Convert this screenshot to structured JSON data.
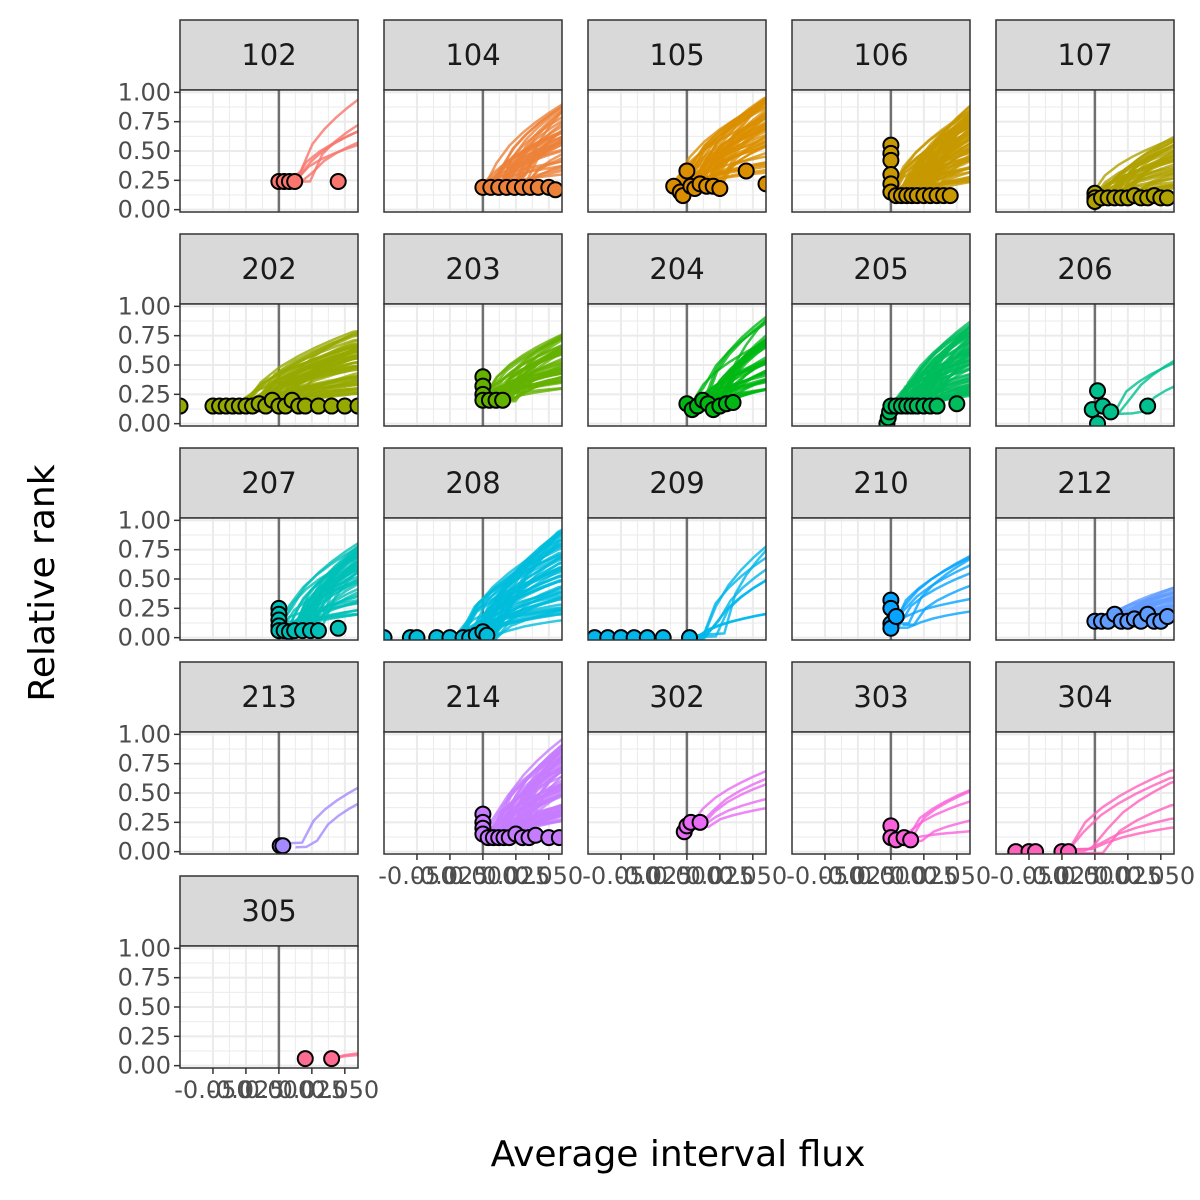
{
  "chart_data": {
    "type": "line",
    "xlabel": "Average interval flux",
    "ylabel": "Relative rank",
    "xlim": [
      -0.075,
      0.06
    ],
    "ylim": [
      -0.02,
      1.02
    ],
    "x_ticks": [
      -0.05,
      -0.025,
      0.0,
      0.025,
      0.05
    ],
    "x_tick_labels": [
      "-0.050",
      "-0.025",
      "0.000",
      "0.025",
      "0.050"
    ],
    "y_ticks": [
      0.0,
      0.25,
      0.5,
      0.75,
      1.0
    ],
    "y_tick_labels": [
      "0.00",
      "0.25",
      "0.50",
      "0.75",
      "1.00"
    ],
    "grid": true,
    "vline_x": 0,
    "legend": "none",
    "panels": [
      {
        "label": "102",
        "color": "#F8766D",
        "n_lines": 6,
        "x_start": 0.002,
        "x_spread": 0.04,
        "y_base": 0.24,
        "y_max": 1.0,
        "points": [
          [
            0.0,
            0.24
          ],
          [
            0.004,
            0.24
          ],
          [
            0.008,
            0.24
          ],
          [
            0.012,
            0.24
          ],
          [
            0.045,
            0.24
          ]
        ]
      },
      {
        "label": "104",
        "color": "#EC8239",
        "n_lines": 40,
        "x_start": 0.0,
        "x_spread": 0.06,
        "y_base": 0.19,
        "y_max": 0.95,
        "points": [
          [
            0.0,
            0.19
          ],
          [
            0.006,
            0.19
          ],
          [
            0.012,
            0.19
          ],
          [
            0.018,
            0.19
          ],
          [
            0.024,
            0.19
          ],
          [
            0.03,
            0.19
          ],
          [
            0.036,
            0.19
          ],
          [
            0.042,
            0.19
          ],
          [
            0.05,
            0.19
          ],
          [
            0.055,
            0.17
          ]
        ]
      },
      {
        "label": "105",
        "color": "#DB8E00",
        "n_lines": 50,
        "x_start": -0.01,
        "x_spread": 0.07,
        "y_base": 0.2,
        "y_max": 1.0,
        "points": [
          [
            -0.01,
            0.2
          ],
          [
            -0.005,
            0.15
          ],
          [
            -0.003,
            0.12
          ],
          [
            0.0,
            0.33
          ],
          [
            0.003,
            0.2
          ],
          [
            0.006,
            0.18
          ],
          [
            0.01,
            0.22
          ],
          [
            0.015,
            0.2
          ],
          [
            0.02,
            0.2
          ],
          [
            0.025,
            0.18
          ],
          [
            0.045,
            0.33
          ],
          [
            0.06,
            0.22
          ]
        ]
      },
      {
        "label": "106",
        "color": "#C79800",
        "n_lines": 80,
        "x_start": 0.0,
        "x_spread": 0.06,
        "y_base": 0.12,
        "y_max": 0.95,
        "points": [
          [
            0.0,
            0.55
          ],
          [
            0.0,
            0.48
          ],
          [
            0.0,
            0.42
          ],
          [
            0.0,
            0.3
          ],
          [
            0.0,
            0.22
          ],
          [
            0.0,
            0.15
          ],
          [
            0.004,
            0.12
          ],
          [
            0.008,
            0.12
          ],
          [
            0.012,
            0.12
          ],
          [
            0.016,
            0.12
          ],
          [
            0.02,
            0.12
          ],
          [
            0.025,
            0.12
          ],
          [
            0.03,
            0.12
          ],
          [
            0.035,
            0.12
          ],
          [
            0.04,
            0.12
          ],
          [
            0.045,
            0.12
          ]
        ]
      },
      {
        "label": "107",
        "color": "#AFA100",
        "n_lines": 40,
        "x_start": 0.0,
        "x_spread": 0.06,
        "y_base": 0.1,
        "y_max": 0.65,
        "points": [
          [
            0.0,
            0.14
          ],
          [
            0.0,
            0.1
          ],
          [
            0.0,
            0.07
          ],
          [
            0.005,
            0.1
          ],
          [
            0.01,
            0.1
          ],
          [
            0.015,
            0.1
          ],
          [
            0.02,
            0.1
          ],
          [
            0.025,
            0.1
          ],
          [
            0.03,
            0.12
          ],
          [
            0.035,
            0.1
          ],
          [
            0.04,
            0.1
          ],
          [
            0.045,
            0.12
          ],
          [
            0.05,
            0.1
          ],
          [
            0.055,
            0.1
          ]
        ]
      },
      {
        "label": "202",
        "color": "#96A900",
        "n_lines": 60,
        "x_start": -0.03,
        "x_spread": 0.08,
        "y_base": 0.15,
        "y_max": 0.82,
        "points": [
          [
            -0.075,
            0.15
          ],
          [
            -0.05,
            0.15
          ],
          [
            -0.045,
            0.15
          ],
          [
            -0.04,
            0.15
          ],
          [
            -0.035,
            0.15
          ],
          [
            -0.03,
            0.15
          ],
          [
            -0.025,
            0.15
          ],
          [
            -0.02,
            0.15
          ],
          [
            -0.015,
            0.17
          ],
          [
            -0.01,
            0.15
          ],
          [
            -0.005,
            0.2
          ],
          [
            0.0,
            0.15
          ],
          [
            0.005,
            0.15
          ],
          [
            0.01,
            0.2
          ],
          [
            0.015,
            0.15
          ],
          [
            0.02,
            0.15
          ],
          [
            0.03,
            0.15
          ],
          [
            0.04,
            0.15
          ],
          [
            0.05,
            0.15
          ],
          [
            0.06,
            0.15
          ]
        ]
      },
      {
        "label": "203",
        "color": "#64B200",
        "n_lines": 45,
        "x_start": 0.0,
        "x_spread": 0.05,
        "y_base": 0.2,
        "y_max": 0.82,
        "points": [
          [
            0.0,
            0.4
          ],
          [
            0.0,
            0.32
          ],
          [
            0.0,
            0.25
          ],
          [
            0.0,
            0.2
          ],
          [
            0.005,
            0.2
          ],
          [
            0.01,
            0.2
          ],
          [
            0.015,
            0.2
          ]
        ]
      },
      {
        "label": "204",
        "color": "#00B813",
        "n_lines": 40,
        "x_start": 0.005,
        "x_spread": 0.05,
        "y_base": 0.15,
        "y_max": 0.97,
        "points": [
          [
            0.0,
            0.17
          ],
          [
            0.004,
            0.12
          ],
          [
            0.008,
            0.15
          ],
          [
            0.012,
            0.2
          ],
          [
            0.016,
            0.17
          ],
          [
            0.02,
            0.12
          ],
          [
            0.025,
            0.15
          ],
          [
            0.03,
            0.17
          ],
          [
            0.035,
            0.18
          ]
        ]
      },
      {
        "label": "205",
        "color": "#00BD5C",
        "n_lines": 70,
        "x_start": 0.0,
        "x_spread": 0.06,
        "y_base": 0.12,
        "y_max": 0.92,
        "points": [
          [
            -0.003,
            0.0
          ],
          [
            -0.002,
            0.05
          ],
          [
            -0.001,
            0.1
          ],
          [
            0.0,
            0.15
          ],
          [
            0.004,
            0.15
          ],
          [
            0.008,
            0.15
          ],
          [
            0.012,
            0.15
          ],
          [
            0.016,
            0.15
          ],
          [
            0.02,
            0.15
          ],
          [
            0.025,
            0.15
          ],
          [
            0.03,
            0.15
          ],
          [
            0.035,
            0.15
          ],
          [
            0.05,
            0.17
          ]
        ]
      },
      {
        "label": "206",
        "color": "#00C08E",
        "n_lines": 3,
        "x_start": 0.005,
        "x_spread": 0.05,
        "y_base": 0.1,
        "y_max": 0.75,
        "points": [
          [
            -0.002,
            0.12
          ],
          [
            0.002,
            0.28
          ],
          [
            0.002,
            0.0
          ],
          [
            0.006,
            0.15
          ],
          [
            0.012,
            0.1
          ],
          [
            0.04,
            0.15
          ]
        ]
      },
      {
        "label": "207",
        "color": "#00C0B8",
        "n_lines": 50,
        "x_start": 0.0,
        "x_spread": 0.06,
        "y_base": 0.08,
        "y_max": 0.85,
        "points": [
          [
            0.0,
            0.25
          ],
          [
            0.0,
            0.2
          ],
          [
            0.0,
            0.15
          ],
          [
            0.0,
            0.1
          ],
          [
            0.0,
            0.06
          ],
          [
            0.004,
            0.06
          ],
          [
            0.008,
            0.05
          ],
          [
            0.012,
            0.06
          ],
          [
            0.018,
            0.06
          ],
          [
            0.024,
            0.06
          ],
          [
            0.03,
            0.06
          ],
          [
            0.045,
            0.08
          ]
        ]
      },
      {
        "label": "208",
        "color": "#00BDDC",
        "n_lines": 60,
        "x_start": -0.02,
        "x_spread": 0.07,
        "y_base": 0.0,
        "y_max": 1.0,
        "points": [
          [
            -0.075,
            0.0
          ],
          [
            -0.055,
            0.0
          ],
          [
            -0.05,
            0.0
          ],
          [
            -0.035,
            0.0
          ],
          [
            -0.025,
            0.0
          ],
          [
            -0.015,
            0.0
          ],
          [
            -0.01,
            0.0
          ],
          [
            -0.005,
            0.02
          ],
          [
            0.0,
            0.05
          ],
          [
            0.003,
            0.02
          ]
        ]
      },
      {
        "label": "209",
        "color": "#00B6EB",
        "n_lines": 8,
        "x_start": 0.005,
        "x_spread": 0.05,
        "y_base": 0.0,
        "y_max": 0.88,
        "points": [
          [
            -0.07,
            0.0
          ],
          [
            -0.06,
            0.0
          ],
          [
            -0.05,
            0.0
          ],
          [
            -0.04,
            0.0
          ],
          [
            -0.03,
            0.0
          ],
          [
            -0.018,
            0.0
          ],
          [
            0.002,
            0.0
          ]
        ]
      },
      {
        "label": "210",
        "color": "#06A4FF",
        "n_lines": 8,
        "x_start": 0.002,
        "x_spread": 0.03,
        "y_base": 0.1,
        "y_max": 0.75,
        "points": [
          [
            0.0,
            0.32
          ],
          [
            0.0,
            0.25
          ],
          [
            0.0,
            0.12
          ],
          [
            0.0,
            0.08
          ],
          [
            0.004,
            0.18
          ]
        ]
      },
      {
        "label": "212",
        "color": "#619CFF",
        "n_lines": 40,
        "x_start": 0.0,
        "x_spread": 0.06,
        "y_base": 0.12,
        "y_max": 0.45,
        "points": [
          [
            0.0,
            0.14
          ],
          [
            0.005,
            0.14
          ],
          [
            0.01,
            0.14
          ],
          [
            0.015,
            0.2
          ],
          [
            0.02,
            0.14
          ],
          [
            0.025,
            0.14
          ],
          [
            0.03,
            0.16
          ],
          [
            0.035,
            0.14
          ],
          [
            0.04,
            0.2
          ],
          [
            0.045,
            0.14
          ],
          [
            0.05,
            0.14
          ],
          [
            0.055,
            0.18
          ]
        ]
      },
      {
        "label": "213",
        "color": "#A58AFF",
        "n_lines": 2,
        "x_start": 0.01,
        "x_spread": 0.04,
        "y_base": 0.05,
        "y_max": 0.7,
        "points": [
          [
            0.001,
            0.05
          ],
          [
            0.003,
            0.05
          ]
        ]
      },
      {
        "label": "214",
        "color": "#C77CFF",
        "n_lines": 70,
        "x_start": 0.0,
        "x_spread": 0.06,
        "y_base": 0.12,
        "y_max": 1.0,
        "points": [
          [
            0.0,
            0.32
          ],
          [
            0.0,
            0.25
          ],
          [
            0.0,
            0.2
          ],
          [
            0.0,
            0.15
          ],
          [
            0.004,
            0.12
          ],
          [
            0.008,
            0.12
          ],
          [
            0.012,
            0.12
          ],
          [
            0.016,
            0.12
          ],
          [
            0.02,
            0.12
          ],
          [
            0.025,
            0.15
          ],
          [
            0.03,
            0.12
          ],
          [
            0.035,
            0.12
          ],
          [
            0.04,
            0.14
          ],
          [
            0.05,
            0.12
          ],
          [
            0.058,
            0.12
          ]
        ]
      },
      {
        "label": "302",
        "color": "#E76BF3",
        "n_lines": 5,
        "x_start": 0.002,
        "x_spread": 0.04,
        "y_base": 0.22,
        "y_max": 0.78,
        "points": [
          [
            -0.002,
            0.17
          ],
          [
            0.0,
            0.22
          ],
          [
            0.003,
            0.25
          ],
          [
            0.01,
            0.25
          ]
        ]
      },
      {
        "label": "303",
        "color": "#FA62DB",
        "n_lines": 5,
        "x_start": 0.005,
        "x_spread": 0.05,
        "y_base": 0.1,
        "y_max": 0.55,
        "points": [
          [
            0.0,
            0.22
          ],
          [
            0.0,
            0.12
          ],
          [
            0.004,
            0.1
          ],
          [
            0.01,
            0.12
          ],
          [
            0.015,
            0.1
          ]
        ]
      },
      {
        "label": "304",
        "color": "#FF62BC",
        "n_lines": 6,
        "x_start": -0.02,
        "x_spread": 0.06,
        "y_base": 0.0,
        "y_max": 0.8,
        "points": [
          [
            -0.06,
            0.0
          ],
          [
            -0.05,
            0.0
          ],
          [
            -0.045,
            0.0
          ],
          [
            -0.025,
            0.0
          ],
          [
            -0.02,
            0.0
          ]
        ]
      },
      {
        "label": "305",
        "color": "#FF6C91",
        "n_lines": 2,
        "x_start": 0.04,
        "x_spread": 0.02,
        "y_base": 0.05,
        "y_max": 0.12,
        "points": [
          [
            0.02,
            0.06
          ],
          [
            0.04,
            0.06
          ]
        ]
      }
    ]
  }
}
